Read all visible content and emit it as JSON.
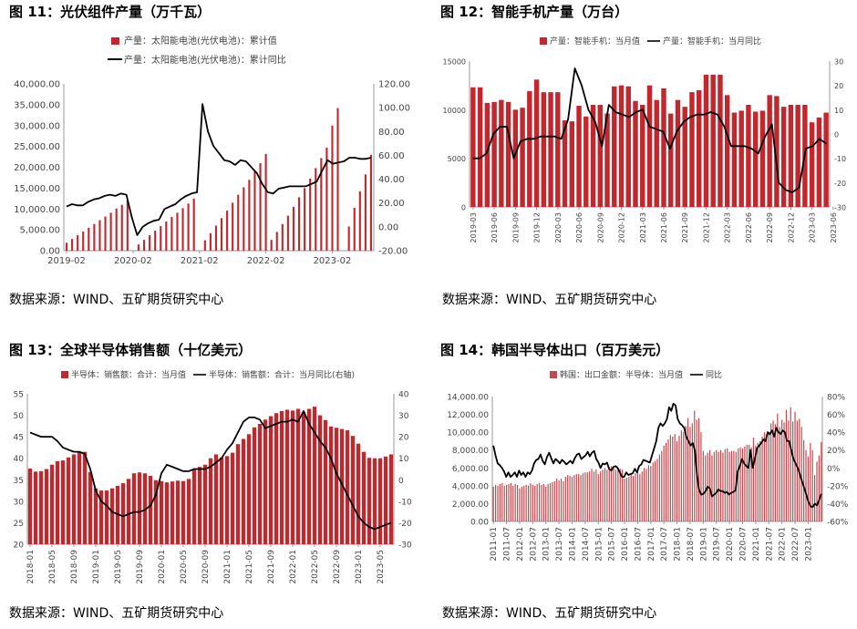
{
  "colors": {
    "bar": "#C0282D",
    "barLight": "#C8474C",
    "line": "#000000",
    "axis": "#999999"
  },
  "chart_data": [
    {
      "id": "c11",
      "type": "bar+line",
      "title": "图 11：光伏组件产量（万千瓦）",
      "source": "数据来源：WIND、五矿期货研究中心",
      "legend": [
        "产量：太阳能电池(光伏电池)：累计值",
        "产量：太阳能电池(光伏电池)：累计同比"
      ],
      "yleft": {
        "min": 0,
        "max": 40000,
        "ticks": [
          "0.00",
          "5,000.00",
          "10,000.00",
          "15,000.00",
          "20,000.00",
          "25,000.00",
          "30,000.00",
          "35,000.00",
          "40,000.00"
        ]
      },
      "yright": {
        "min": -20,
        "max": 120,
        "ticks": [
          "-20.00",
          "0.00",
          "20.00",
          "40.00",
          "60.00",
          "80.00",
          "100.00",
          "120.00"
        ]
      },
      "xticks": [
        "2019-02",
        "2020-02",
        "2021-02",
        "2022-02",
        "2023-02"
      ],
      "xtick_index": [
        0,
        12,
        24,
        36,
        48
      ],
      "bars": [
        1900,
        2800,
        3700,
        4600,
        5500,
        6400,
        7300,
        8200,
        9100,
        10100,
        11000,
        12000,
        null,
        1500,
        2600,
        3700,
        4800,
        5900,
        7000,
        8100,
        9100,
        10200,
        11300,
        12500,
        null,
        2500,
        4200,
        6000,
        7800,
        9600,
        11500,
        13400,
        15200,
        17000,
        19000,
        21000,
        23200,
        2600,
        4500,
        6400,
        8400,
        10500,
        12800,
        15000,
        17300,
        19800,
        22200,
        24700,
        30000,
        34200,
        null,
        5800,
        10300,
        14200,
        18300,
        23000
      ],
      "line": [
        17,
        19,
        18,
        18,
        21,
        23,
        24,
        26,
        27,
        26,
        28,
        27,
        8,
        -7,
        0,
        3,
        5,
        6,
        15,
        17,
        19,
        23,
        26,
        28,
        29,
        103,
        80,
        68,
        62,
        56,
        55,
        52,
        56,
        55,
        50,
        45,
        36,
        29,
        28,
        32,
        33,
        34,
        34,
        34,
        34,
        36,
        38,
        47,
        56,
        53,
        54,
        55,
        58,
        58,
        57,
        57,
        58
      ]
    },
    {
      "id": "c12",
      "type": "bar+line",
      "title": "图 12：智能手机产量（万台）",
      "source": "数据来源：WIND、五矿期货研究中心",
      "legend": [
        "产量：智能手机：当月值",
        "产量：智能手机：当月同比"
      ],
      "yleft": {
        "min": 0,
        "max": 15000,
        "ticks": [
          "0",
          "5000",
          "10000",
          "15000"
        ]
      },
      "yright": {
        "min": -30,
        "max": 30,
        "ticks": [
          "-30",
          "-20",
          "-10",
          "0",
          "10",
          "20",
          "30"
        ]
      },
      "xticks": [
        "2019-03",
        "2019-06",
        "2019-09",
        "2019-12",
        "2020-03",
        "2020-06",
        "2020-09",
        "2020-12",
        "2021-03",
        "2021-06",
        "2021-09",
        "2021-12",
        "2022-03",
        "2022-06",
        "2022-09",
        "2022-12",
        "2023-03",
        "2023-06"
      ],
      "xtick_index": [
        0,
        3,
        6,
        9,
        12,
        15,
        18,
        21,
        24,
        27,
        30,
        33,
        36,
        39,
        42,
        45,
        48,
        51
      ],
      "bars": [
        12300,
        12300,
        10700,
        10800,
        11000,
        10800,
        10000,
        10200,
        11900,
        13100,
        11800,
        11800,
        11800,
        8900,
        8800,
        10400,
        9300,
        10500,
        10500,
        9600,
        12400,
        12500,
        12400,
        10900,
        10500,
        12500,
        11000,
        12200,
        9600,
        11000,
        10300,
        11800,
        12000,
        13600,
        13600,
        13600,
        11500,
        9700,
        9900,
        10500,
        9800,
        9900,
        11500,
        11400,
        10300,
        10500,
        10500,
        10500,
        8700,
        9200,
        9700
      ],
      "line": [
        -10,
        -10,
        -8,
        0,
        3,
        3,
        -10,
        -3,
        -2,
        -2,
        -1,
        -1,
        -1,
        -2,
        6,
        27,
        20,
        10,
        5,
        -5,
        12,
        9,
        8,
        7,
        9,
        10,
        3,
        2,
        1,
        -6,
        1,
        5,
        7,
        8,
        8,
        9,
        8,
        3,
        -5,
        -5,
        -5,
        -6,
        -8,
        -1,
        4,
        -20,
        -23,
        -24,
        -22,
        -6,
        -5,
        -2,
        -4
      ]
    },
    {
      "id": "c13",
      "type": "bar+line",
      "title": "图 13：全球半导体销售额（十亿美元）",
      "source": "数据来源：WIND、五矿期货研究中心",
      "legend": [
        "半导体：销售额：合计：当月值",
        "半导体：销售额：合计：当月同比(右轴)"
      ],
      "yleft": {
        "min": 20,
        "max": 55,
        "ticks": [
          "20",
          "25",
          "30",
          "35",
          "40",
          "45",
          "50",
          "55"
        ]
      },
      "yright": {
        "min": -30,
        "max": 40,
        "ticks": [
          "-30",
          "-20",
          "-10",
          "0",
          "10",
          "20",
          "30",
          "40"
        ]
      },
      "xticks": [
        "2018-01",
        "2018-05",
        "2018-09",
        "2019-01",
        "2019-05",
        "2019-09",
        "2020-01",
        "2020-05",
        "2020-09",
        "2021-01",
        "2021-05",
        "2021-09",
        "2022-01",
        "2022-05",
        "2022-09",
        "2023-01",
        "2023-05"
      ],
      "xtick_index": [
        0,
        4,
        8,
        12,
        16,
        20,
        24,
        28,
        32,
        36,
        40,
        44,
        48,
        52,
        56,
        60,
        64
      ],
      "bars": [
        37.6,
        36.9,
        37.0,
        37.5,
        38.5,
        39.3,
        39.5,
        40.2,
        40.9,
        41.4,
        41.5,
        36.8,
        33.0,
        32.5,
        32.5,
        33.0,
        33.6,
        34.2,
        35.2,
        36.5,
        36.7,
        36.5,
        35.9,
        34.9,
        34.7,
        34.4,
        34.6,
        34.8,
        34.7,
        35.2,
        37.4,
        38.0,
        38.5,
        40.0,
        40.9,
        40.2,
        40.5,
        41.3,
        43.3,
        44.5,
        45.6,
        47.2,
        48.0,
        49.0,
        49.8,
        50.5,
        51.0,
        51.3,
        51.1,
        51.5,
        50.7,
        51.5,
        52.0,
        50.0,
        48.9,
        47.4,
        47.1,
        46.8,
        46.5,
        45.2,
        43.4,
        41.5,
        40.1,
        40.0,
        40.0,
        40.4,
        40.9
      ],
      "line": [
        22,
        21,
        20,
        20,
        20,
        18,
        15,
        14,
        13,
        13,
        12,
        5,
        -5,
        -10,
        -12,
        -15,
        -16,
        -17,
        -16,
        -15,
        -15,
        -14,
        -12,
        -7,
        3,
        7,
        6,
        5,
        4,
        4,
        5,
        5,
        5,
        6,
        8,
        10,
        14,
        17,
        22,
        27,
        29,
        29,
        28,
        24,
        25,
        26,
        27,
        27,
        28,
        27,
        32,
        26,
        22,
        18,
        15,
        10,
        3,
        -2,
        -7,
        -12,
        -17,
        -20,
        -22,
        -23,
        -22,
        -21,
        -20
      ]
    },
    {
      "id": "c14",
      "type": "bar+line",
      "title": "图 14：韩国半导体出口（百万美元）",
      "source": "数据来源：WIND、五矿期货研究中心",
      "legend": [
        "韩国：出口金额：半导体：当月值",
        "同比"
      ],
      "yleft": {
        "min": 0,
        "max": 14000,
        "ticks": [
          "0.00",
          "2,000.00",
          "4,000.00",
          "6,000.00",
          "8,000.00",
          "10,000.00",
          "12,000.00",
          "14,000.00"
        ]
      },
      "yright": {
        "min": -60,
        "max": 80,
        "ticks": [
          "-60%",
          "-40%",
          "-20%",
          "0%",
          "20%",
          "40%",
          "60%",
          "80%"
        ]
      },
      "xticks": [
        "2011-01",
        "2011-07",
        "2012-01",
        "2012-07",
        "2013-01",
        "2013-07",
        "2014-01",
        "2014-07",
        "2015-01",
        "2015-07",
        "2016-01",
        "2016-07",
        "2017-01",
        "2017-07",
        "2018-01",
        "2018-07",
        "2019-01",
        "2019-07",
        "2020-01",
        "2020-07",
        "2021-01",
        "2021-07",
        "2022-01",
        "2022-07",
        "2023-01"
      ],
      "xtick_index": [
        0,
        6,
        12,
        18,
        24,
        30,
        36,
        42,
        48,
        54,
        60,
        66,
        72,
        78,
        84,
        90,
        96,
        102,
        108,
        114,
        120,
        126,
        132,
        138,
        144
      ],
      "bars": [
        3900,
        4100,
        4000,
        4200,
        4300,
        4000,
        4100,
        4200,
        4300,
        4000,
        4200,
        4100,
        3700,
        3900,
        4000,
        4100,
        4000,
        4300,
        4100,
        4000,
        4200,
        4300,
        4100,
        4200,
        3900,
        4200,
        4300,
        4400,
        4500,
        4800,
        4600,
        4800,
        4500,
        5000,
        5200,
        5100,
        5000,
        5200,
        5300,
        5300,
        5200,
        5400,
        5500,
        5500,
        5600,
        5900,
        5600,
        5800,
        5300,
        5600,
        5800,
        6000,
        5800,
        6100,
        6200,
        6000,
        5800,
        6000,
        5900,
        5800,
        4800,
        4900,
        5000,
        5200,
        5100,
        5400,
        5500,
        5300,
        5600,
        6000,
        5900,
        6300,
        6200,
        6600,
        6800,
        7000,
        7500,
        7900,
        8500,
        8800,
        9200,
        9700,
        9500,
        9800,
        9000,
        9600,
        10200,
        10000,
        10700,
        11600,
        10600,
        11000,
        12400,
        11400,
        11600,
        10000,
        7900,
        7400,
        7700,
        8000,
        7400,
        7800,
        8000,
        7800,
        8000,
        7700,
        8100,
        8200,
        7800,
        7900,
        7900,
        7800,
        8200,
        8300,
        8200,
        8400,
        8600,
        8600,
        8300,
        9400,
        8500,
        8800,
        9000,
        9500,
        10000,
        9800,
        10000,
        11000,
        11300,
        10900,
        12100,
        10600,
        11400,
        11100,
        12500,
        11300,
        12800,
        11200,
        12300,
        11300,
        11500,
        10600,
        9100,
        8000,
        7300,
        8800,
        8000,
        5200,
        6700,
        7400,
        8900
      ]
    },
    {
      "id": "c14_line",
      "type": "line",
      "series": "同比",
      "values": [
        25,
        14,
        5,
        3,
        0,
        -4,
        -10,
        -5,
        -10,
        -8,
        -5,
        -10,
        -3,
        -8,
        -5,
        -10,
        -5,
        -7,
        -3,
        5,
        9,
        10,
        15,
        8,
        4,
        12,
        17,
        11,
        5,
        10,
        8,
        5,
        9,
        7,
        4,
        6,
        8,
        5,
        11,
        15,
        16,
        10,
        12,
        14,
        18,
        13,
        17,
        19,
        10,
        6,
        0,
        5,
        4,
        6,
        -1,
        -3,
        1,
        2,
        0,
        -5,
        -10,
        -10,
        -5,
        -8,
        -7,
        -6,
        -1,
        -5,
        2,
        4,
        9,
        8,
        7,
        6,
        14,
        22,
        30,
        45,
        50,
        47,
        50,
        55,
        68,
        64,
        72,
        70,
        55,
        50,
        48,
        45,
        35,
        30,
        25,
        28,
        20,
        -8,
        -25,
        -30,
        -29,
        -26,
        -21,
        -23,
        -32,
        -30,
        -28,
        -24,
        -26,
        -26,
        -28,
        -27,
        -30,
        -28,
        -27,
        -25,
        -4,
        2,
        10,
        5,
        2,
        0,
        20,
        0,
        10,
        22,
        25,
        28,
        32,
        30,
        40,
        38,
        42,
        35,
        45,
        40,
        38,
        42,
        40,
        30,
        30,
        20,
        10,
        5,
        0,
        -7,
        -15,
        -22,
        -30,
        -38,
        -43,
        -44,
        -40,
        -42,
        -36,
        -29
      ]
    }
  ]
}
